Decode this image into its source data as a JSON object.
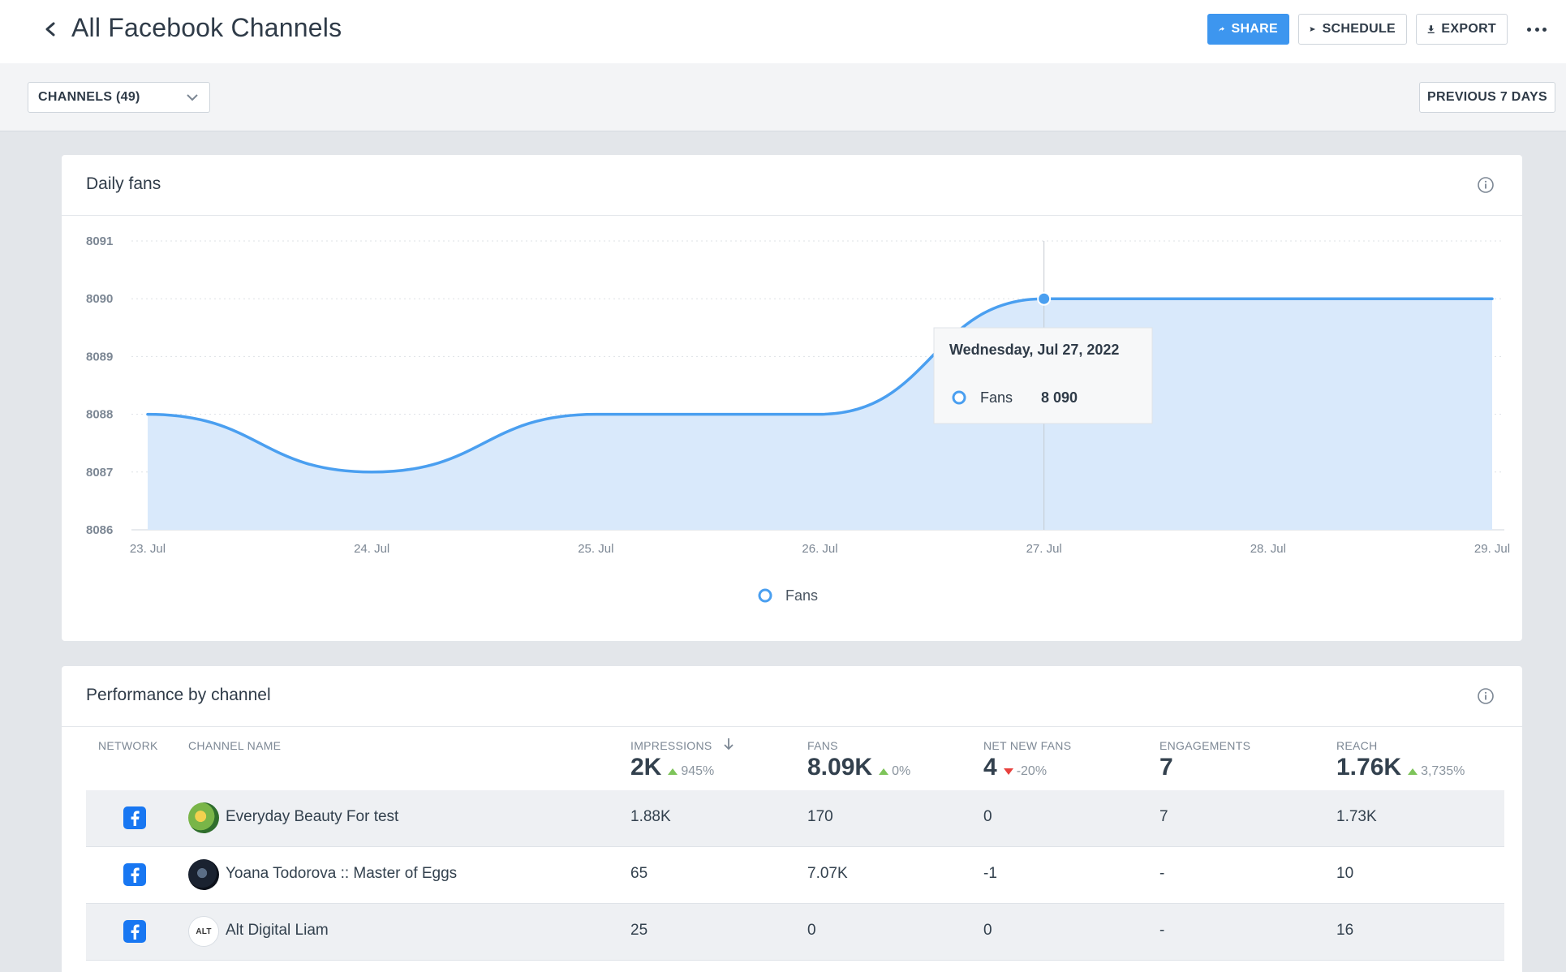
{
  "header": {
    "title": "All Facebook Channels",
    "share_label": "SHARE",
    "schedule_label": "SCHEDULE",
    "export_label": "EXPORT"
  },
  "filters": {
    "channels_label": "CHANNELS (49)",
    "period_label": "PREVIOUS 7 DAYS"
  },
  "daily_fans": {
    "title": "Daily fans",
    "tooltip": {
      "date": "Wednesday, Jul 27, 2022",
      "series": "Fans",
      "value": "8 090"
    },
    "legend_label": "Fans"
  },
  "chart_data": {
    "type": "area",
    "title": "Daily fans",
    "x": [
      "23. Jul",
      "24. Jul",
      "25. Jul",
      "26. Jul",
      "27. Jul",
      "28. Jul",
      "29. Jul"
    ],
    "series": [
      {
        "name": "Fans",
        "values": [
          8088,
          8087,
          8088,
          8088,
          8090,
          8090,
          8090
        ]
      }
    ],
    "ylim": [
      8086,
      8091
    ],
    "yticks": [
      "8091",
      "8090",
      "8089",
      "8088",
      "8087",
      "8086"
    ],
    "grid": true,
    "legend": "bottom-center",
    "colors": {
      "line": "#4a9ff0",
      "fill": "#d9e9fb"
    }
  },
  "performance": {
    "title": "Performance by channel",
    "columns": {
      "network": "NETWORK",
      "channel": "CHANNEL NAME",
      "impressions": "IMPRESSIONS",
      "fans": "FANS",
      "net_new_fans": "NET NEW FANS",
      "engagements": "ENGAGEMENTS",
      "reach": "REACH"
    },
    "totals": {
      "impressions": "2K",
      "impressions_change": "945%",
      "fans": "8.09K",
      "fans_change": "0%",
      "net_new_fans": "4",
      "net_new_fans_change": "-20%",
      "engagements": "7",
      "reach": "1.76K",
      "reach_change": "3,735%"
    },
    "rows": [
      {
        "name": "Everyday Beauty For test",
        "impressions": "1.88K",
        "fans": "170",
        "net_new_fans": "0",
        "engagements": "7",
        "reach": "1.73K"
      },
      {
        "name": "Yoana Todorova :: Master of Eggs",
        "impressions": "65",
        "fans": "7.07K",
        "net_new_fans": "-1",
        "engagements": "-",
        "reach": "10"
      },
      {
        "name": "Alt Digital Liam",
        "avatar_text": "ALT",
        "impressions": "25",
        "fans": "0",
        "net_new_fans": "0",
        "engagements": "-",
        "reach": "16"
      }
    ]
  }
}
